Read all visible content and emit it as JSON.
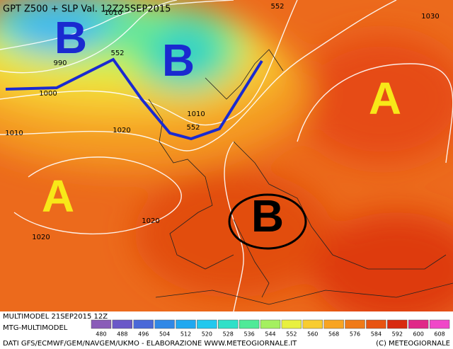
{
  "title": "GPT Z500 + SLP Val. 12Z25SEP2015",
  "pressure_systems": [
    {
      "label": "B"
    },
    {
      "label": "B"
    },
    {
      "label": "A"
    },
    {
      "label": "A"
    },
    {
      "label": "B"
    }
  ],
  "contour_labels": [
    {
      "label": "1010"
    },
    {
      "label": "552"
    },
    {
      "label": "1030"
    },
    {
      "label": "990"
    },
    {
      "label": "552"
    },
    {
      "label": "1000"
    },
    {
      "label": "1010"
    },
    {
      "label": "1020"
    },
    {
      "label": "1010"
    },
    {
      "label": "552"
    },
    {
      "label": "1020"
    },
    {
      "label": "1020"
    }
  ],
  "footer": {
    "run": "MULTIMODEL 21SEP2015 12Z",
    "model": "MTG-MULTIMODEL",
    "credits": "DATI GFS/ECMWF/GEM/NAVGEM/UKMO - ELABORAZIONE WWW.METEOGIORNALE.IT",
    "copyright": "(C) METEOGIORNALE"
  },
  "legend": {
    "values": [
      480,
      488,
      496,
      504,
      512,
      520,
      528,
      536,
      544,
      552,
      560,
      568,
      576,
      584,
      592,
      600,
      608
    ],
    "colors": [
      "#8a5cb8",
      "#6a58c8",
      "#4a68d8",
      "#3088e6",
      "#20a8f0",
      "#22c8ee",
      "#30e0c8",
      "#50ea98",
      "#a4f060",
      "#e8f040",
      "#f8cc30",
      "#f8a422",
      "#f07a18",
      "#e85412",
      "#d82a10",
      "#e02888",
      "#f048c8"
    ]
  }
}
